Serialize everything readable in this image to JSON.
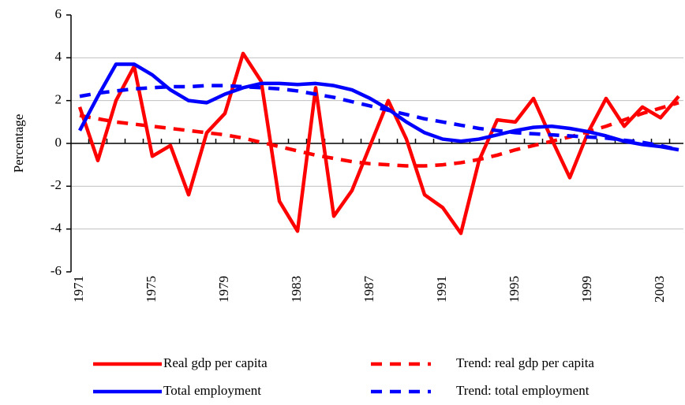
{
  "chart_data": {
    "type": "line",
    "y_label": "Percentage",
    "categories": [
      "1971",
      null,
      null,
      null,
      "1975",
      null,
      null,
      null,
      "1979",
      null,
      null,
      null,
      "1983",
      null,
      null,
      null,
      "1987",
      null,
      null,
      null,
      "1991",
      null,
      null,
      null,
      "1995",
      null,
      null,
      null,
      "1999",
      null,
      null,
      null,
      "2003",
      null
    ],
    "series": [
      {
        "name": "Real gdp per capita",
        "color": "#ff0000",
        "dashed": false,
        "values": [
          1.7,
          -0.8,
          2.0,
          3.6,
          -0.6,
          -0.1,
          -2.4,
          0.5,
          1.4,
          4.2,
          2.9,
          -2.7,
          -4.1,
          2.6,
          -3.4,
          -2.2,
          -0.1,
          2.0,
          0.2,
          -2.4,
          -3.0,
          -4.2,
          -0.8,
          1.1,
          1.0,
          2.1,
          0.2,
          -1.6,
          0.5,
          2.1,
          0.8,
          1.7,
          1.2,
          2.2
        ]
      },
      {
        "name": "Trend: real gdp per capita",
        "color": "#ff0000",
        "dashed": true,
        "values": [
          1.3,
          1.15,
          1.0,
          0.9,
          0.8,
          0.7,
          0.6,
          0.5,
          0.4,
          0.25,
          0.05,
          -0.15,
          -0.35,
          -0.55,
          -0.7,
          -0.85,
          -0.95,
          -1.0,
          -1.05,
          -1.05,
          -1.0,
          -0.9,
          -0.75,
          -0.55,
          -0.3,
          -0.1,
          0.1,
          0.3,
          0.55,
          0.8,
          1.1,
          1.4,
          1.65,
          1.9
        ]
      },
      {
        "name": "Total employment",
        "color": "#0000ff",
        "dashed": false,
        "values": [
          0.6,
          2.2,
          3.7,
          3.7,
          3.2,
          2.5,
          2.0,
          1.9,
          2.3,
          2.6,
          2.8,
          2.8,
          2.75,
          2.8,
          2.7,
          2.5,
          2.1,
          1.6,
          1.0,
          0.5,
          0.2,
          0.1,
          0.2,
          0.4,
          0.6,
          0.75,
          0.8,
          0.7,
          0.55,
          0.35,
          0.1,
          -0.05,
          -0.15,
          -0.3
        ]
      },
      {
        "name": "Trend: total employment",
        "color": "#0000ff",
        "dashed": true,
        "values": [
          2.2,
          2.35,
          2.45,
          2.55,
          2.6,
          2.65,
          2.65,
          2.7,
          2.7,
          2.65,
          2.6,
          2.55,
          2.45,
          2.3,
          2.15,
          1.95,
          1.75,
          1.55,
          1.35,
          1.15,
          1.0,
          0.85,
          0.7,
          0.6,
          0.5,
          0.45,
          0.4,
          0.35,
          0.3,
          0.25,
          0.15,
          0.05,
          -0.1,
          -0.3
        ]
      }
    ],
    "ylim": [
      -6,
      6
    ],
    "yticks": [
      -6,
      -4,
      -2,
      0,
      2,
      4,
      6
    ],
    "grid": true
  }
}
